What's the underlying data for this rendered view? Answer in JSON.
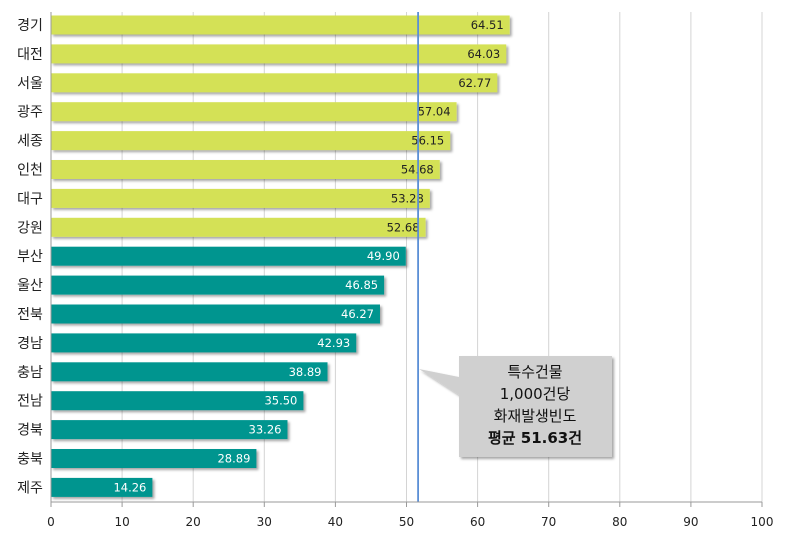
{
  "chart_data": {
    "type": "bar",
    "orientation": "horizontal",
    "categories": [
      "경기",
      "대전",
      "서울",
      "광주",
      "세종",
      "인천",
      "대구",
      "강원",
      "부산",
      "울산",
      "전북",
      "경남",
      "충남",
      "전남",
      "경북",
      "충북",
      "제주"
    ],
    "values": [
      64.51,
      64.03,
      62.77,
      57.04,
      56.15,
      54.68,
      53.28,
      52.68,
      49.9,
      46.85,
      46.27,
      42.93,
      38.89,
      35.5,
      33.26,
      28.89,
      14.26
    ],
    "value_labels": [
      "64.51",
      "64.03",
      "62.77",
      "57.04",
      "56.15",
      "54.68",
      "53.28",
      "52.68",
      "49.90",
      "46.85",
      "46.27",
      "42.93",
      "38.89",
      "35.50",
      "33.26",
      "28.89",
      "14.26"
    ],
    "xlim": [
      0,
      100
    ],
    "x_ticks": [
      0,
      10,
      20,
      30,
      40,
      50,
      60,
      70,
      80,
      90,
      100
    ],
    "grid": true,
    "average": 51.63,
    "annotation": {
      "lines": [
        "특수건물",
        "1,000건당",
        "화재발생빈도",
        "평균 51.63건"
      ]
    },
    "colors": {
      "above_average": "#d4e157",
      "below_average": "#00958f",
      "average_line": "#5b8fd6",
      "callout_fill": "#d0d0d0"
    }
  }
}
